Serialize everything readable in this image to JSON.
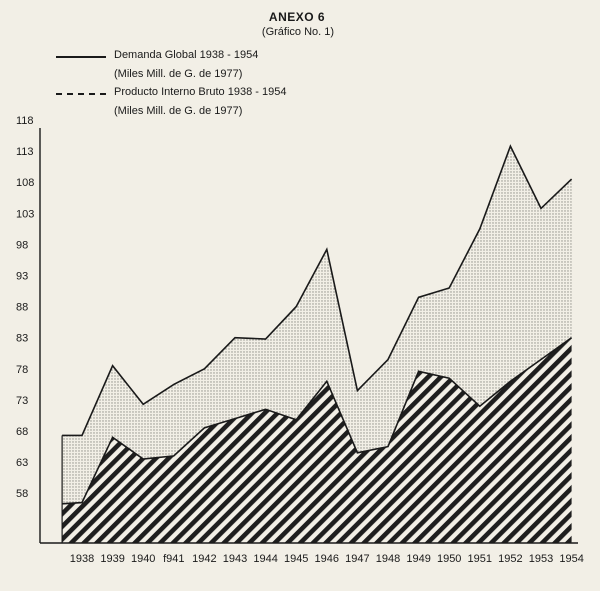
{
  "header": {
    "title": "ANEXO 6",
    "subtitle": "(Gráfico No. 1)"
  },
  "legend": [
    {
      "name": "Demanda Global 1938 - 1954",
      "unit": "(Miles Mill. de G. de 1977)",
      "style": "solid"
    },
    {
      "name": "Producto Interno Bruto 1938 - 1954",
      "unit": "(Miles Mill. de G. de 1977)",
      "style": "dashed"
    }
  ],
  "colors": {
    "background": "#f2efe6",
    "line": "#1a1a1a",
    "stipple": "#9a9a94"
  },
  "chart_data": {
    "type": "area",
    "title": "ANEXO 6",
    "subtitle": "(Gráfico No. 1)",
    "x_labels": [
      "1938",
      "1939",
      "1940",
      "f941",
      "1942",
      "1943",
      "1944",
      "1945",
      "1946",
      "1947",
      "1948",
      "1949",
      "1950",
      "1951",
      "1952",
      "1953",
      "1954"
    ],
    "y_ticks": [
      58,
      63,
      68,
      73,
      78,
      83,
      88,
      93,
      98,
      103,
      108,
      113,
      118
    ],
    "ylim": [
      50,
      120
    ],
    "grid": false,
    "series": [
      {
        "name": "Demanda Global 1938 - 1954",
        "fill": "stippled",
        "points": [
          {
            "x": 1937.35,
            "y": 67.3
          },
          {
            "x": 1938.0,
            "y": 67.3
          },
          {
            "x": 1939.0,
            "y": 78.5
          },
          {
            "x": 1940.0,
            "y": 72.3
          },
          {
            "x": 1941.0,
            "y": 75.5
          },
          {
            "x": 1942.0,
            "y": 78.0
          },
          {
            "x": 1943.0,
            "y": 83.0
          },
          {
            "x": 1944.0,
            "y": 82.8
          },
          {
            "x": 1945.0,
            "y": 88.0
          },
          {
            "x": 1946.0,
            "y": 97.2
          },
          {
            "x": 1947.0,
            "y": 74.5
          },
          {
            "x": 1948.0,
            "y": 79.5
          },
          {
            "x": 1949.0,
            "y": 89.5
          },
          {
            "x": 1950.0,
            "y": 91.0
          },
          {
            "x": 1951.0,
            "y": 100.5
          },
          {
            "x": 1952.0,
            "y": 113.8
          },
          {
            "x": 1953.0,
            "y": 103.8
          },
          {
            "x": 1954.0,
            "y": 108.5
          }
        ]
      },
      {
        "name": "Producto Interno Bruto 1938 - 1954",
        "fill": "hatched",
        "points": [
          {
            "x": 1937.35,
            "y": 56.3
          },
          {
            "x": 1938.0,
            "y": 56.5
          },
          {
            "x": 1939.0,
            "y": 67.0
          },
          {
            "x": 1940.0,
            "y": 63.5
          },
          {
            "x": 1941.0,
            "y": 64.0
          },
          {
            "x": 1942.0,
            "y": 68.5
          },
          {
            "x": 1943.0,
            "y": 70.0
          },
          {
            "x": 1944.0,
            "y": 71.5
          },
          {
            "x": 1945.0,
            "y": 69.8
          },
          {
            "x": 1946.0,
            "y": 76.0
          },
          {
            "x": 1947.0,
            "y": 64.5
          },
          {
            "x": 1948.0,
            "y": 65.5
          },
          {
            "x": 1949.0,
            "y": 77.6
          },
          {
            "x": 1950.0,
            "y": 76.5
          },
          {
            "x": 1951.0,
            "y": 72.0
          },
          {
            "x": 1952.0,
            "y": 76.0
          },
          {
            "x": 1953.0,
            "y": 79.5
          },
          {
            "x": 1954.0,
            "y": 83.0
          }
        ]
      }
    ]
  }
}
